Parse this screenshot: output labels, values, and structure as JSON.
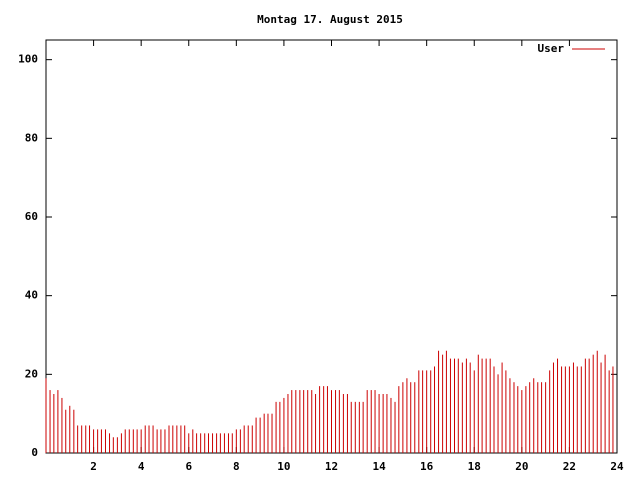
{
  "chart_data": {
    "type": "impulse",
    "title": "Montag 17. August 2015",
    "series": [
      {
        "name": "User",
        "color": "#cc0000",
        "values": [
          19,
          16,
          15,
          16,
          14,
          11,
          12,
          11,
          7,
          7,
          7,
          7,
          6,
          6,
          6,
          6,
          5,
          4,
          4,
          5,
          6,
          6,
          6,
          6,
          6,
          7,
          7,
          7,
          6,
          6,
          6,
          7,
          7,
          7,
          7,
          7,
          5,
          6,
          5,
          5,
          5,
          5,
          5,
          5,
          5,
          5,
          5,
          5,
          6,
          6,
          7,
          7,
          7,
          9,
          9,
          10,
          10,
          10,
          13,
          13,
          14,
          15,
          16,
          16,
          16,
          16,
          16,
          16,
          15,
          17,
          17,
          17,
          16,
          16,
          16,
          15,
          15,
          13,
          13,
          13,
          13,
          16,
          16,
          16,
          15,
          15,
          15,
          14,
          13,
          17,
          18,
          19,
          18,
          18,
          21,
          21,
          21,
          21,
          22,
          26,
          25,
          26,
          24,
          24,
          24,
          23,
          24,
          23,
          21,
          25,
          24,
          24,
          24,
          22,
          20,
          23,
          21,
          19,
          18,
          17,
          16,
          17,
          18,
          19,
          18,
          18,
          18,
          21,
          23,
          24,
          22,
          22,
          22,
          23,
          22,
          22,
          24,
          24,
          25,
          26,
          23,
          25,
          21,
          22
        ]
      }
    ],
    "x": [
      0,
      0.17,
      0.33,
      0.5,
      0.67,
      0.83,
      1,
      1.17,
      1.33,
      1.5,
      1.67,
      1.83,
      2,
      2.17,
      2.33,
      2.5,
      2.67,
      2.83,
      3,
      3.17,
      3.33,
      3.5,
      3.67,
      3.83,
      4,
      4.17,
      4.33,
      4.5,
      4.67,
      4.83,
      5,
      5.17,
      5.33,
      5.5,
      5.67,
      5.83,
      6,
      6.17,
      6.33,
      6.5,
      6.67,
      6.83,
      7,
      7.17,
      7.33,
      7.5,
      7.67,
      7.83,
      8,
      8.17,
      8.33,
      8.5,
      8.67,
      8.83,
      9,
      9.17,
      9.33,
      9.5,
      9.67,
      9.83,
      10,
      10.17,
      10.33,
      10.5,
      10.67,
      10.83,
      11,
      11.17,
      11.33,
      11.5,
      11.67,
      11.83,
      12,
      12.17,
      12.33,
      12.5,
      12.67,
      12.83,
      13,
      13.17,
      13.33,
      13.5,
      13.67,
      13.83,
      14,
      14.17,
      14.33,
      14.5,
      14.67,
      14.83,
      15,
      15.17,
      15.33,
      15.5,
      15.67,
      15.83,
      16,
      16.17,
      16.33,
      16.5,
      16.67,
      16.83,
      17,
      17.17,
      17.33,
      17.5,
      17.67,
      17.83,
      18,
      18.17,
      18.33,
      18.5,
      18.67,
      18.83,
      19,
      19.17,
      19.33,
      19.5,
      19.67,
      19.83,
      20,
      20.17,
      20.33,
      20.5,
      20.67,
      20.83,
      21,
      21.17,
      21.33,
      21.5,
      21.67,
      21.83,
      22,
      22.17,
      22.33,
      22.5,
      22.67,
      22.83,
      23,
      23.17,
      23.33,
      23.5,
      23.67,
      23.83
    ],
    "xlim": [
      0,
      24
    ],
    "xticks": [
      2,
      4,
      6,
      8,
      10,
      12,
      14,
      16,
      18,
      20,
      22,
      24
    ],
    "ylim": [
      0,
      105
    ],
    "yticks": [
      0,
      20,
      40,
      60,
      80,
      100
    ],
    "legend": "upper right"
  }
}
